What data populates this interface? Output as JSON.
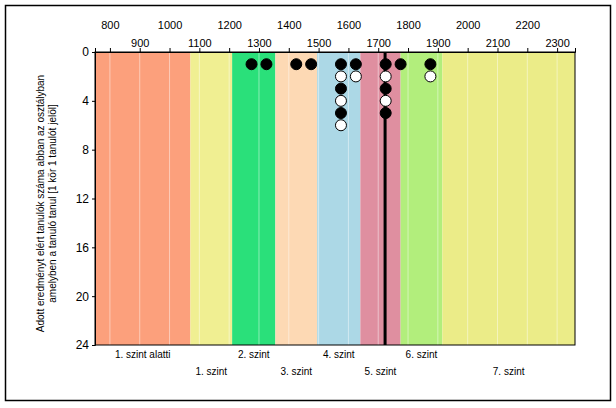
{
  "chart_data": {
    "type": "scatter",
    "ylabel": [
      "Adott eredményt elért tanulók száma abban az osztályban",
      "amelyben a tanuló tanul [1 kör 1 tanulót jelöl]"
    ],
    "xlim": [
      750,
      2360
    ],
    "ylim": [
      0,
      24
    ],
    "xticks": [
      800,
      900,
      1000,
      1100,
      1200,
      1300,
      1400,
      1500,
      1600,
      1700,
      1800,
      1900,
      2000,
      2100,
      2200,
      2300
    ],
    "yticks": [
      0,
      4,
      8,
      12,
      16,
      20,
      24
    ],
    "grid": true,
    "bands": [
      {
        "label": "1. szint alatti",
        "from": 750,
        "to": 1070,
        "color": "#fca07c"
      },
      {
        "label": "1. szint",
        "from": 1070,
        "to": 1210,
        "color": "#f0ef92"
      },
      {
        "label": "2. szint",
        "from": 1210,
        "to": 1355,
        "color": "#2ae07a"
      },
      {
        "label": "3. szint",
        "from": 1355,
        "to": 1495,
        "color": "#fdd9b4"
      },
      {
        "label": "4. szint",
        "from": 1495,
        "to": 1640,
        "color": "#acd8e6"
      },
      {
        "label": "5. szint",
        "from": 1640,
        "to": 1775,
        "color": "#df8fa0"
      },
      {
        "label": "6. szint",
        "from": 1775,
        "to": 1915,
        "color": "#b2ee7c"
      },
      {
        "label": "7. szint",
        "from": 1915,
        "to": 2360,
        "color": "#ebec88"
      }
    ],
    "reference_line": 1723,
    "series": [
      {
        "color": "#000000",
        "marker": "filled",
        "x": [
          1275,
          1325,
          1425,
          1475,
          1575,
          1575,
          1575,
          1625,
          1725,
          1725,
          1725,
          1775,
          1875
        ],
        "values": [
          1,
          1,
          1,
          1,
          1,
          3,
          5,
          1,
          1,
          3,
          5,
          1,
          1
        ]
      },
      {
        "color": "#000000",
        "marker": "open",
        "x": [
          1575,
          1575,
          1575,
          1625,
          1725,
          1725,
          1875
        ],
        "values": [
          2,
          4,
          6,
          2,
          2,
          4,
          2
        ]
      }
    ]
  }
}
